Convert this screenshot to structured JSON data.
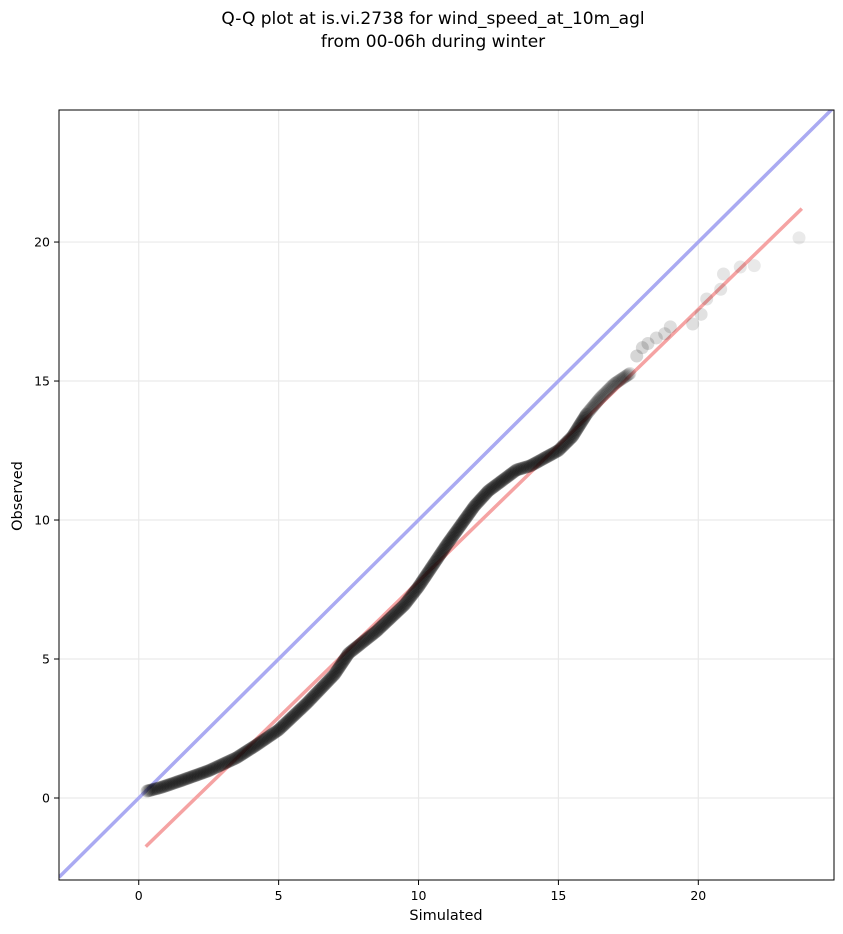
{
  "chart_data": {
    "type": "scatter",
    "title": [
      "Q-Q plot at is.vi.2738 for wind_speed_at_10m_agl",
      "from 00-06h during winter"
    ],
    "xlabel": "Simulated",
    "ylabel": "Observed",
    "xlim": [
      -2.85,
      24.85
    ],
    "ylim": [
      -2.95,
      24.75
    ],
    "x_ticks": [
      0,
      5,
      10,
      15,
      20
    ],
    "y_ticks": [
      0,
      5,
      10,
      15,
      20
    ],
    "grid": true,
    "legend": "none",
    "colors": {
      "points": "#000000",
      "identity_line": "#aaaaf2",
      "fit_line": "#f5a3a3",
      "grid": "#e9e9e9"
    },
    "identity_line": {
      "from": [
        -2.85,
        -2.85
      ],
      "to": [
        24.85,
        24.85
      ]
    },
    "fit_line": {
      "from": [
        0.25,
        -1.75
      ],
      "to": [
        23.7,
        21.2
      ]
    },
    "quantile_curve": [
      [
        0.3,
        0.25
      ],
      [
        0.8,
        0.38
      ],
      [
        1.5,
        0.62
      ],
      [
        2.5,
        0.98
      ],
      [
        3.5,
        1.45
      ],
      [
        4.2,
        1.9
      ],
      [
        5.0,
        2.45
      ],
      [
        6.0,
        3.4
      ],
      [
        7.0,
        4.45
      ],
      [
        7.5,
        5.2
      ],
      [
        8.5,
        6.0
      ],
      [
        9.5,
        6.95
      ],
      [
        10.0,
        7.6
      ],
      [
        11.0,
        9.1
      ],
      [
        12.0,
        10.5
      ],
      [
        12.5,
        11.05
      ],
      [
        13.5,
        11.8
      ],
      [
        14.0,
        11.95
      ],
      [
        15.0,
        12.5
      ],
      [
        15.5,
        13.0
      ],
      [
        16.0,
        13.8
      ],
      [
        16.5,
        14.4
      ],
      [
        17.0,
        14.9
      ],
      [
        17.6,
        15.3
      ]
    ],
    "tail_points": [
      [
        17.8,
        15.9
      ],
      [
        18.0,
        16.2
      ],
      [
        18.2,
        16.35
      ],
      [
        18.5,
        16.55
      ],
      [
        18.8,
        16.7
      ],
      [
        19.0,
        16.95
      ],
      [
        19.8,
        17.05
      ],
      [
        20.1,
        17.4
      ],
      [
        20.3,
        17.95
      ],
      [
        20.8,
        18.3
      ],
      [
        20.9,
        18.85
      ],
      [
        21.5,
        19.1
      ],
      [
        22.0,
        19.15
      ],
      [
        23.6,
        20.15
      ]
    ]
  }
}
